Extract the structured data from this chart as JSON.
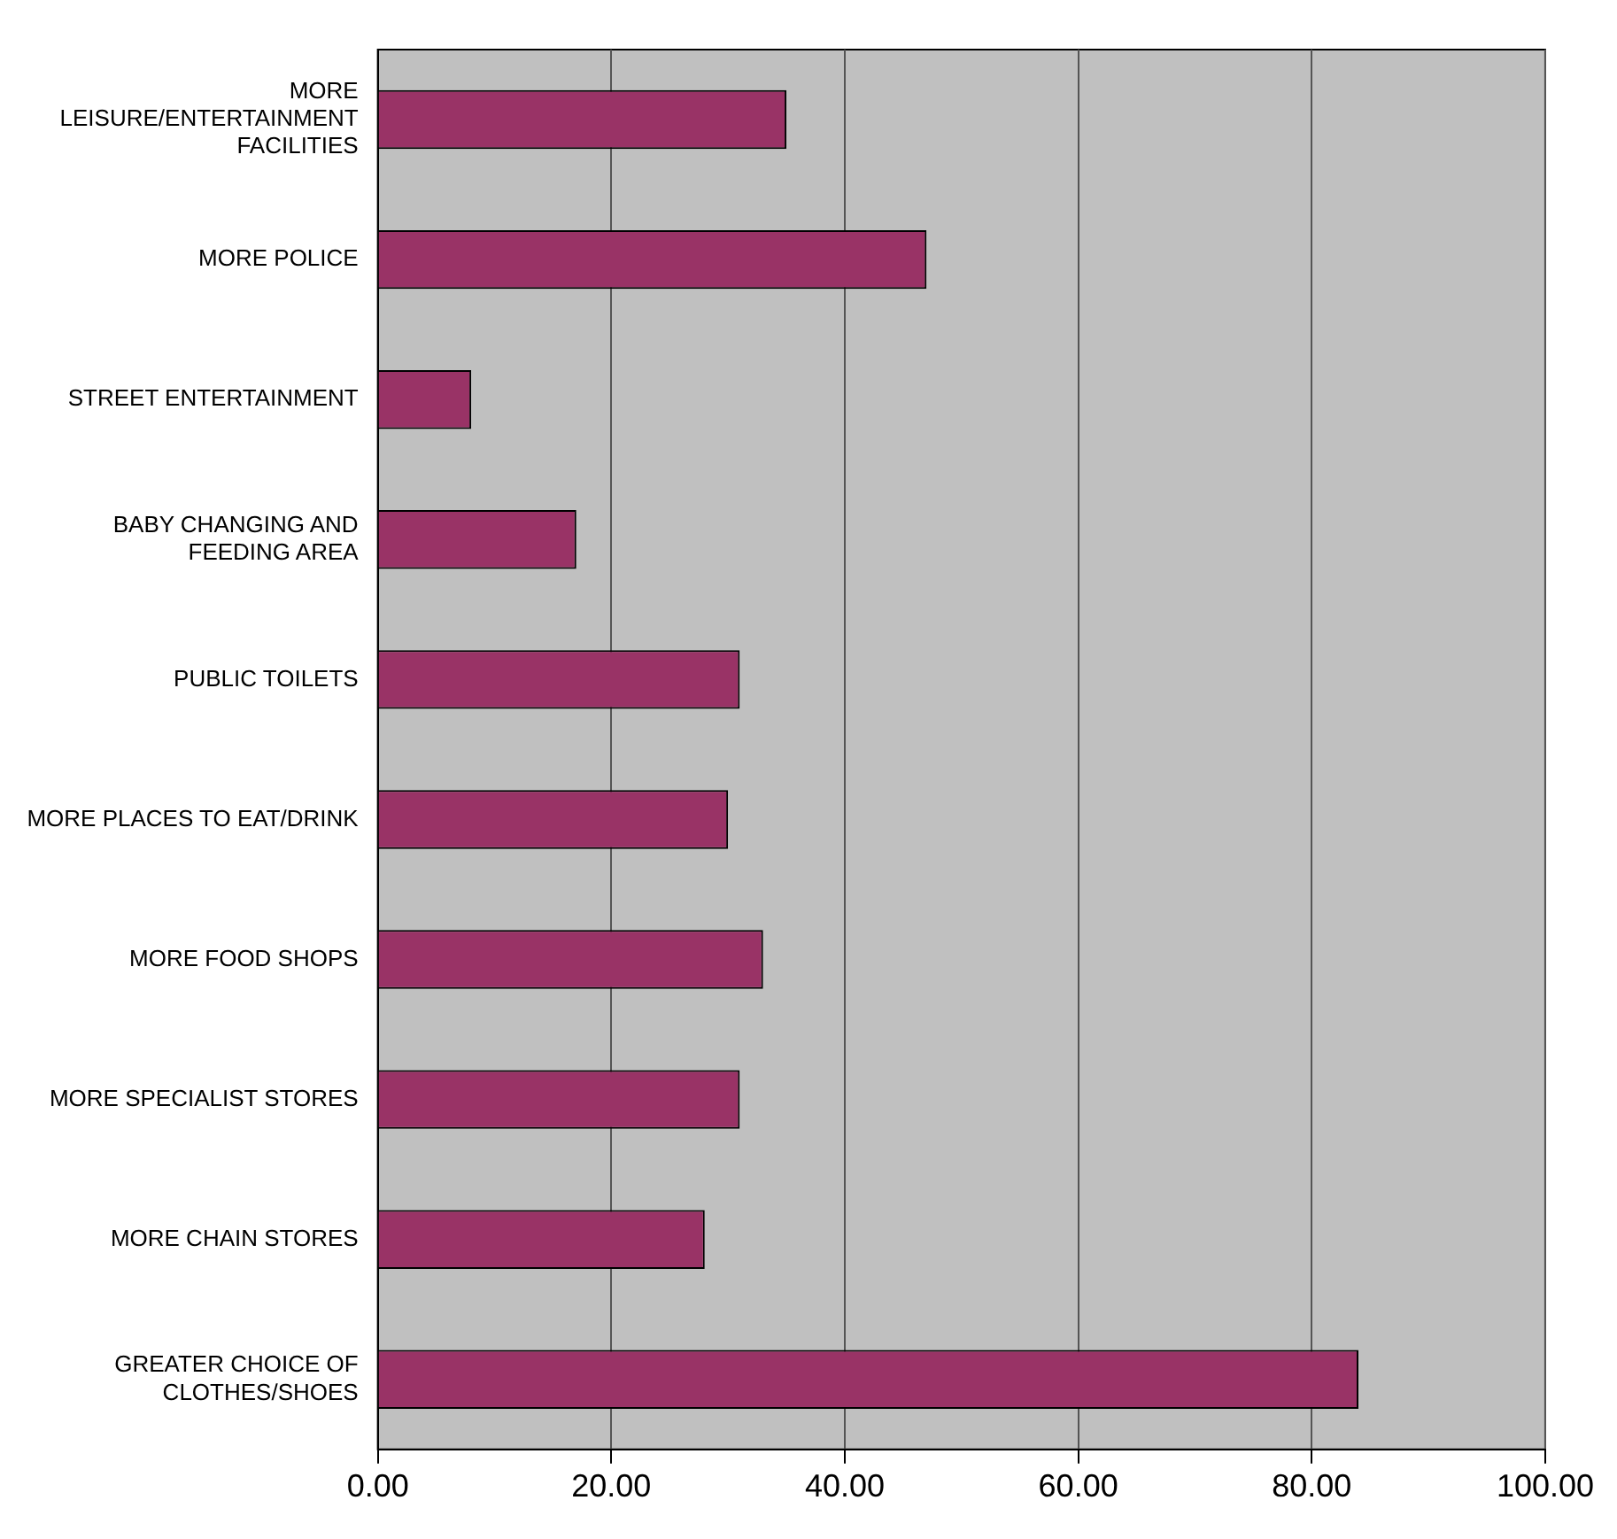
{
  "chart_data": {
    "type": "bar",
    "orientation": "horizontal",
    "categories": [
      "MORE LEISURE/ENTERTAINMENT FACILITIES",
      "MORE POLICE",
      "STREET ENTERTAINMENT",
      "BABY CHANGING AND FEEDING AREA",
      "PUBLIC TOILETS",
      "MORE PLACES TO EAT/DRINK",
      "MORE FOOD SHOPS",
      "MORE SPECIALIST STORES",
      "MORE CHAIN STORES",
      "GREATER CHOICE OF CLOTHES/SHOES"
    ],
    "values": [
      35,
      47,
      8,
      17,
      31,
      30,
      33,
      31,
      28,
      84
    ],
    "color": "#993366",
    "xlim": [
      0,
      100
    ],
    "xticks": [
      {
        "value": 0,
        "label": "0.00"
      },
      {
        "value": 20,
        "label": "20.00"
      },
      {
        "value": 40,
        "label": "40.00"
      },
      {
        "value": 60,
        "label": "60.00"
      },
      {
        "value": 80,
        "label": "80.00"
      },
      {
        "value": 100,
        "label": "100.00"
      }
    ],
    "grid": "x"
  }
}
